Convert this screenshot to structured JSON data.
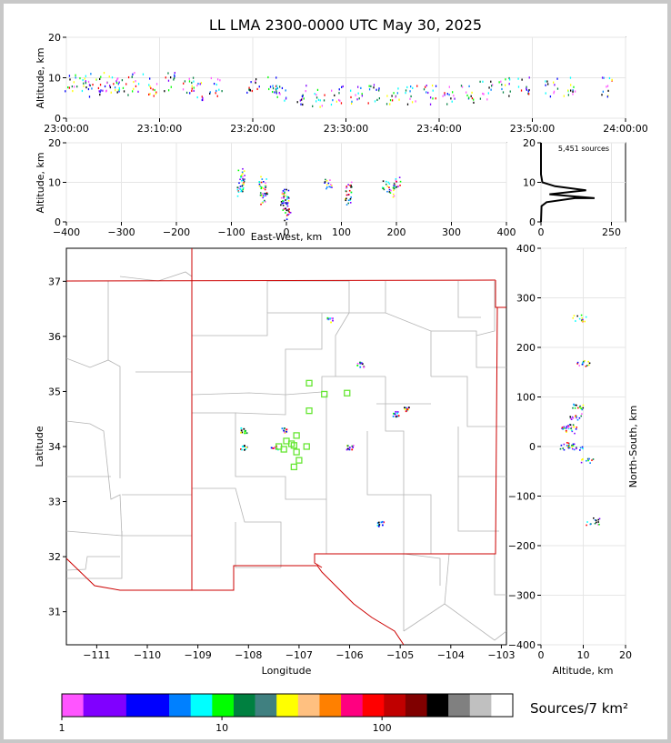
{
  "title": "LL LMA 2300-0000 UTC May 30, 2025",
  "time_panel": {
    "ylabel": "Altitude, km",
    "xticks": [
      "23:00:00",
      "23:10:00",
      "23:20:00",
      "23:30:00",
      "23:40:00",
      "23:50:00",
      "24:00:00"
    ],
    "yticks": [
      "0",
      "10",
      "20"
    ]
  },
  "ew_panel": {
    "ylabel": "Altitude, km",
    "xlabel": "East-West, km",
    "xticks": [
      "−400",
      "−300",
      "−200",
      "−100",
      "0",
      "100",
      "200",
      "300",
      "400"
    ],
    "yticks": [
      "0",
      "10",
      "20"
    ]
  },
  "hist_panel": {
    "count_label": "5,451 sources",
    "xticks": [
      "0",
      "250"
    ],
    "yticks": [
      "0",
      "10",
      "20"
    ]
  },
  "map_panel": {
    "xlabel": "Longitude",
    "ylabel": "Latitude",
    "xticks": [
      "−111",
      "−110",
      "−109",
      "−108",
      "−107",
      "−106",
      "−105",
      "−104",
      "−103"
    ],
    "yticks": [
      "31",
      "32",
      "33",
      "34",
      "35",
      "36",
      "37"
    ]
  },
  "ns_panel": {
    "xlabel": "Altitude, km",
    "ylabel": "North-South, km",
    "xticks": [
      "0",
      "10",
      "20"
    ],
    "yticks": [
      "400",
      "300",
      "200",
      "100",
      "0",
      "−100",
      "−200",
      "−300",
      "−400"
    ]
  },
  "colorbar": {
    "label": "Sources/7 km²",
    "ticks": [
      "1",
      "10",
      "100"
    ],
    "colors": [
      "#ff55ff",
      "#8000ff",
      "#8000ff",
      "#0000ff",
      "#0000ff",
      "#0080ff",
      "#00ffff",
      "#00ff00",
      "#008040",
      "#408080",
      "#ffff00",
      "#ffc080",
      "#ff8000",
      "#ff0080",
      "#ff0000",
      "#c00000",
      "#800000",
      "#000000",
      "#808080",
      "#c0c0c0",
      "#ffffff"
    ]
  },
  "chart_data": [
    {
      "type": "scatter",
      "title": "LL LMA 2300-0000 UTC May 30, 2025",
      "xlabel": "",
      "ylabel": "Altitude, km",
      "xlim": [
        "23:00:00",
        "24:00:00"
      ],
      "ylim": [
        0,
        20
      ],
      "points": [
        {
          "x": "23:00:30",
          "y": 9
        },
        {
          "x": "23:02:00",
          "y": 9
        },
        {
          "x": "23:03:00",
          "y": 8
        },
        {
          "x": "23:04:00",
          "y": 9
        },
        {
          "x": "23:05:00",
          "y": 9
        },
        {
          "x": "23:06:00",
          "y": 8
        },
        {
          "x": "23:07:30",
          "y": 9
        },
        {
          "x": "23:09:00",
          "y": 8
        },
        {
          "x": "23:11:00",
          "y": 9
        },
        {
          "x": "23:13:00",
          "y": 8
        },
        {
          "x": "23:14:00",
          "y": 7
        },
        {
          "x": "23:16:00",
          "y": 8
        },
        {
          "x": "23:20:00",
          "y": 9
        },
        {
          "x": "23:22:00",
          "y": 8
        },
        {
          "x": "23:23:00",
          "y": 6
        },
        {
          "x": "23:25:00",
          "y": 6
        },
        {
          "x": "23:27:00",
          "y": 5
        },
        {
          "x": "23:29:00",
          "y": 6
        },
        {
          "x": "23:31:00",
          "y": 6
        },
        {
          "x": "23:33:00",
          "y": 6
        },
        {
          "x": "23:35:00",
          "y": 6
        },
        {
          "x": "23:37:00",
          "y": 6
        },
        {
          "x": "23:39:00",
          "y": 6
        },
        {
          "x": "23:41:00",
          "y": 6
        },
        {
          "x": "23:43:00",
          "y": 6
        },
        {
          "x": "23:45:00",
          "y": 7
        },
        {
          "x": "23:47:00",
          "y": 8
        },
        {
          "x": "23:49:00",
          "y": 8
        },
        {
          "x": "23:52:00",
          "y": 8
        },
        {
          "x": "23:54:00",
          "y": 8
        },
        {
          "x": "23:58:00",
          "y": 8
        }
      ]
    },
    {
      "type": "scatter",
      "xlabel": "East-West, km",
      "ylabel": "Altitude, km",
      "xlim": [
        -400,
        400
      ],
      "ylim": [
        0,
        20
      ],
      "points": [
        {
          "x": -85,
          "y": 8
        },
        {
          "x": -84,
          "y": 10
        },
        {
          "x": -82,
          "y": 12
        },
        {
          "x": -45,
          "y": 8
        },
        {
          "x": -44,
          "y": 10
        },
        {
          "x": -42,
          "y": 6
        },
        {
          "x": -5,
          "y": 6
        },
        {
          "x": -3,
          "y": 4
        },
        {
          "x": -2,
          "y": 7
        },
        {
          "x": 0,
          "y": 2
        },
        {
          "x": 75,
          "y": 10
        },
        {
          "x": 110,
          "y": 6
        },
        {
          "x": 112,
          "y": 9
        },
        {
          "x": 180,
          "y": 9
        },
        {
          "x": 190,
          "y": 8
        },
        {
          "x": 200,
          "y": 10
        }
      ]
    },
    {
      "type": "line",
      "title": "5,451 sources",
      "xlabel": "",
      "ylabel": "",
      "xlim": [
        0,
        300
      ],
      "ylim": [
        0,
        20
      ],
      "x": [
        0,
        2,
        20,
        120,
        190,
        30,
        160,
        50,
        5,
        0,
        0
      ],
      "y": [
        0,
        4,
        5,
        6,
        6,
        7,
        8,
        9,
        10,
        12,
        20
      ]
    },
    {
      "type": "scatter",
      "xlabel": "Longitude",
      "ylabel": "Latitude",
      "xlim": [
        -111.6,
        -102.9
      ],
      "ylim": [
        30.4,
        37.6
      ],
      "points": [
        {
          "x": -107.3,
          "y": 34.3
        },
        {
          "x": -108.1,
          "y": 34.0
        },
        {
          "x": -107.5,
          "y": 34.0
        },
        {
          "x": -106.0,
          "y": 34.0
        },
        {
          "x": -105.1,
          "y": 34.6
        },
        {
          "x": -104.9,
          "y": 34.7
        },
        {
          "x": -106.4,
          "y": 36.3
        },
        {
          "x": -105.8,
          "y": 35.5
        },
        {
          "x": -105.4,
          "y": 32.6
        },
        {
          "x": -108.1,
          "y": 34.3
        }
      ],
      "stations": [
        {
          "x": -106.8,
          "y": 35.15
        },
        {
          "x": -106.5,
          "y": 34.95
        },
        {
          "x": -106.05,
          "y": 34.97
        },
        {
          "x": -106.8,
          "y": 34.65
        },
        {
          "x": -107.05,
          "y": 34.2
        },
        {
          "x": -107.25,
          "y": 34.1
        },
        {
          "x": -107.4,
          "y": 34.0
        },
        {
          "x": -107.3,
          "y": 33.95
        },
        {
          "x": -107.1,
          "y": 34.02
        },
        {
          "x": -106.85,
          "y": 34.0
        },
        {
          "x": -107.05,
          "y": 33.9
        },
        {
          "x": -107.0,
          "y": 33.75
        },
        {
          "x": -107.1,
          "y": 33.63
        },
        {
          "x": -107.15,
          "y": 34.05
        }
      ]
    },
    {
      "type": "scatter",
      "xlabel": "Altitude, km",
      "ylabel": "North-South, km",
      "xlim": [
        0,
        20
      ],
      "ylim": [
        -400,
        400
      ],
      "points": [
        {
          "x": 6,
          "y": 40
        },
        {
          "x": 7,
          "y": 35
        },
        {
          "x": 9,
          "y": 80
        },
        {
          "x": 8,
          "y": 0
        },
        {
          "x": 6,
          "y": 2
        },
        {
          "x": 9,
          "y": 260
        },
        {
          "x": 10,
          "y": 170
        },
        {
          "x": 12,
          "y": -150
        },
        {
          "x": 8,
          "y": 60
        },
        {
          "x": 11,
          "y": -25
        }
      ]
    }
  ]
}
